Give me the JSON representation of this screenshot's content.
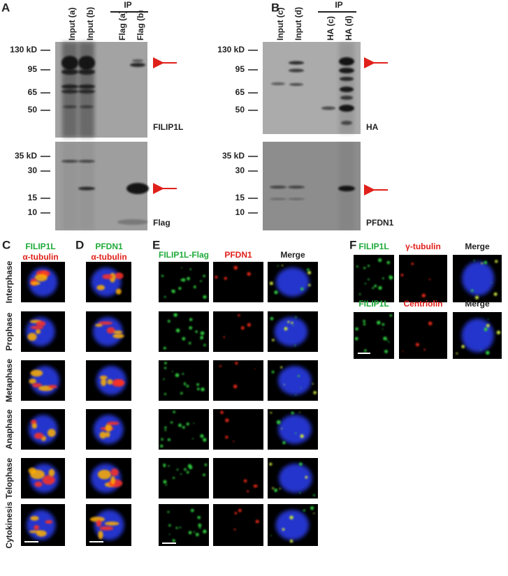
{
  "panels": {
    "A": {
      "label": "A",
      "ip": "IP",
      "lanes": [
        "Input (a)",
        "Input (b)",
        "Flag (a)",
        "Flag (b)"
      ],
      "top_blot": {
        "markers": [
          "130 kD",
          95,
          65,
          50
        ],
        "antibody": "FILIP1L"
      },
      "bottom_blot": {
        "markers": [
          "35 kD",
          30,
          15,
          10
        ],
        "antibody": "Flag"
      }
    },
    "B": {
      "label": "B",
      "ip": "IP",
      "lanes": [
        "Input (c)",
        "Input (d)",
        "HA (c)",
        "HA (d)"
      ],
      "top_blot": {
        "markers": [
          "130 kD",
          95,
          65,
          50
        ],
        "antibody": "HA"
      },
      "bottom_blot": {
        "markers": [
          "35 kD",
          30,
          15,
          10
        ],
        "antibody": "PFDN1"
      }
    },
    "C": {
      "label": "C",
      "stain_green": "FILIP1L",
      "stain_red": "α-tubulin",
      "phases": [
        "Interphase",
        "Prophase",
        "Metaphase",
        "Anaphase",
        "Telophase",
        "Cytokinesis"
      ]
    },
    "D": {
      "label": "D",
      "stain_green": "PFDN1",
      "stain_red": "α-tubulin"
    },
    "E": {
      "label": "E",
      "columns": [
        "FILIP1L-Flag",
        "PFDN1",
        "Merge"
      ]
    },
    "F": {
      "label": "F",
      "rows": [
        [
          "FILIP1L",
          "γ-tubulin",
          "Merge"
        ],
        [
          "FILIP1L",
          "Centriolin",
          "Merge"
        ]
      ]
    }
  }
}
